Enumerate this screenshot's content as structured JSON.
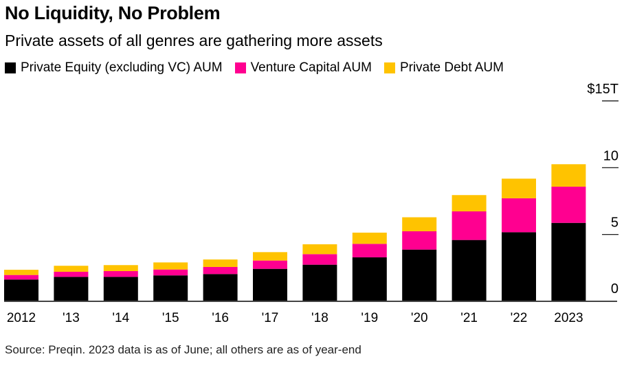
{
  "title": "No Liquidity, No Problem",
  "subtitle": "Private assets of all genres are gathering more assets",
  "source": "Source: Preqin. 2023 data is as of June; all others are as of year-end",
  "chart_data": {
    "type": "bar",
    "stacked": true,
    "categories": [
      "2012",
      "'13",
      "'14",
      "'15",
      "'16",
      "'17",
      "'18",
      "'19",
      "'20",
      "'21",
      "'22",
      "2023"
    ],
    "series": [
      {
        "name": "Private Equity (excluding VC) AUM",
        "color": "#000000",
        "values": [
          1.63,
          1.83,
          1.83,
          1.94,
          2.04,
          2.43,
          2.74,
          3.29,
          3.87,
          4.59,
          5.17,
          5.87
        ]
      },
      {
        "name": "Venture Capital AUM",
        "color": "#ff0090",
        "values": [
          0.34,
          0.38,
          0.43,
          0.44,
          0.53,
          0.62,
          0.79,
          1.01,
          1.37,
          2.14,
          2.54,
          2.71
        ]
      },
      {
        "name": "Private Debt AUM",
        "color": "#ffc300",
        "values": [
          0.39,
          0.45,
          0.45,
          0.53,
          0.56,
          0.63,
          0.74,
          0.84,
          1.05,
          1.22,
          1.47,
          1.68
        ]
      }
    ],
    "yticks": [
      0,
      5,
      10,
      15
    ],
    "ytick_labels": [
      "0",
      "5",
      "10",
      "$15T"
    ],
    "ylim": [
      0,
      15
    ],
    "yaxis_position": "right",
    "legend_position": "top-left",
    "grid": false
  }
}
